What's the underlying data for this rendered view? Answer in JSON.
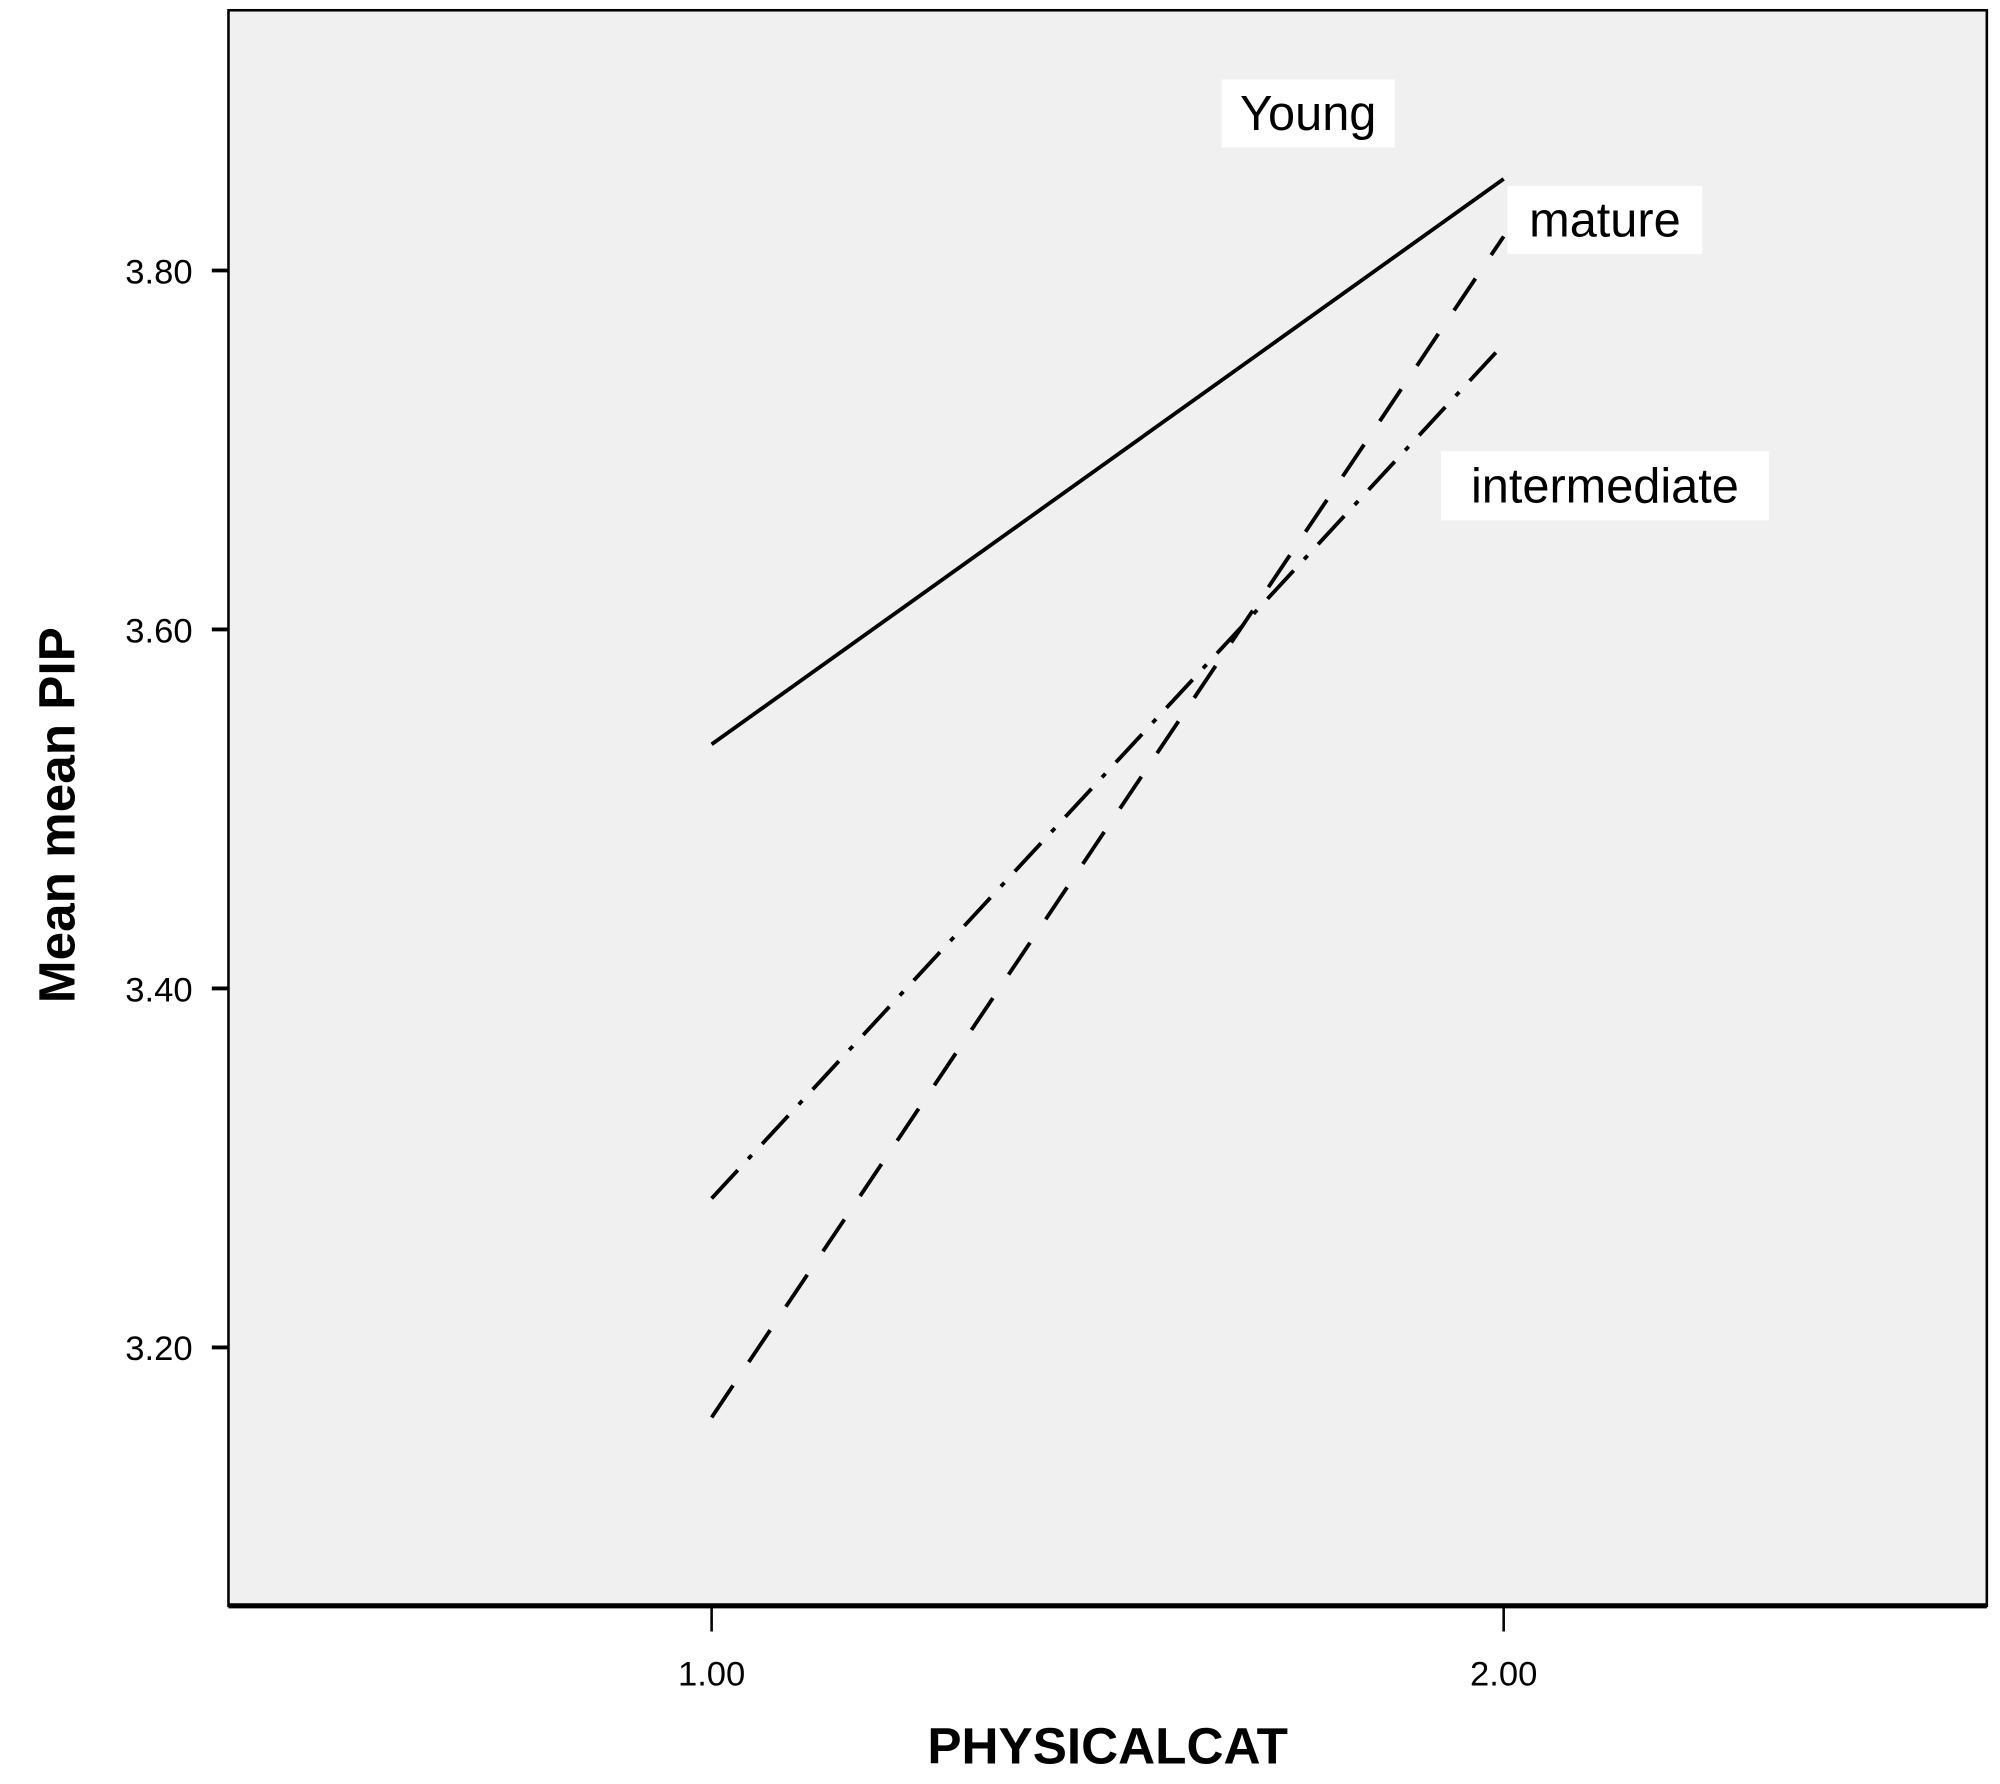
{
  "chart_data": {
    "type": "line",
    "title": "",
    "xlabel": "PHYSICALCAT",
    "ylabel": "Mean mean PIP",
    "x": [
      1.0,
      2.0
    ],
    "xticks": [
      "1.00",
      "2.00"
    ],
    "yticks": [
      "3.20",
      "3.40",
      "3.60",
      "3.80"
    ],
    "ytick_values": [
      3.2,
      3.4,
      3.6,
      3.8
    ],
    "xtick_values": [
      1.0,
      2.0
    ],
    "xlim": [
      0.39,
      2.61
    ],
    "ylim": [
      3.056,
      3.945
    ],
    "grid": false,
    "background": "#f0f0f0",
    "series": [
      {
        "name": "Young",
        "values": [
          3.536,
          3.851
        ],
        "style": "solid"
      },
      {
        "name": "mature",
        "values": [
          3.161,
          3.819
        ],
        "style": "dashed"
      },
      {
        "name": "intermediate",
        "values": [
          3.283,
          3.759
        ],
        "style": "dash-dot"
      }
    ]
  }
}
